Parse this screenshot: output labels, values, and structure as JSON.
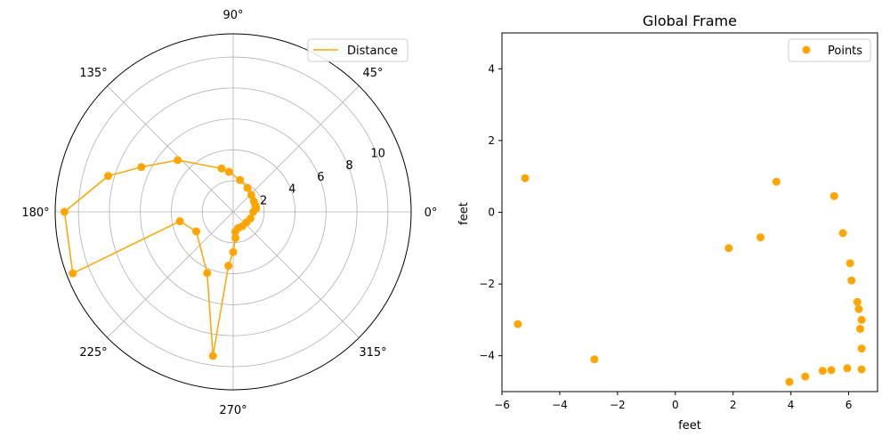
{
  "chart_data": [
    {
      "type": "line",
      "projection": "polar",
      "title": "",
      "angle_tick_labels": [
        "0°",
        "45°",
        "90°",
        "135°",
        "180°",
        "225°",
        "270°",
        "315°"
      ],
      "angle_ticks_deg": [
        0,
        45,
        90,
        135,
        180,
        225,
        270,
        315
      ],
      "radial_tick_labels": [
        "2",
        "4",
        "6",
        "8",
        "10"
      ],
      "radial_ticks": [
        2,
        4,
        6,
        8,
        10
      ],
      "rlim": [
        0,
        11.5
      ],
      "grid": true,
      "legend": {
        "position": "top-right",
        "entries": [
          "Distance"
        ]
      },
      "series": [
        {
          "name": "Distance",
          "color": "#FFA500",
          "marker": "circle",
          "points": [
            {
              "theta": 8,
              "r": 1.5
            },
            {
              "theta": 15,
              "r": 1.5
            },
            {
              "theta": 27,
              "r": 1.5
            },
            {
              "theta": 43,
              "r": 1.6
            },
            {
              "theta": 59,
              "r": 1.8
            },
            {
              "theta": 78,
              "r": 2.1
            },
            {
              "theta": 96,
              "r": 2.6
            },
            {
              "theta": 105,
              "r": 2.9
            },
            {
              "theta": 137,
              "r": 4.9
            },
            {
              "theta": 154,
              "r": 6.6
            },
            {
              "theta": 164,
              "r": 8.4
            },
            {
              "theta": 180,
              "r": 10.9
            },
            {
              "theta": 201,
              "r": 11.1
            },
            {
              "theta": 190,
              "r": 3.5
            },
            {
              "theta": 208,
              "r": 2.7
            },
            {
              "theta": 247,
              "r": 4.3
            },
            {
              "theta": 262,
              "r": 9.4
            },
            {
              "theta": 265,
              "r": 3.5
            },
            {
              "theta": 270,
              "r": 2.6
            },
            {
              "theta": 275,
              "r": 1.7
            },
            {
              "theta": 276,
              "r": 1.3
            },
            {
              "theta": 287,
              "r": 1.1
            },
            {
              "theta": 303,
              "r": 1.1
            },
            {
              "theta": 322,
              "r": 1.1
            },
            {
              "theta": 339,
              "r": 1.2
            },
            {
              "theta": 0,
              "r": 1.3
            },
            {
              "theta": 16,
              "r": 1.5
            }
          ]
        }
      ]
    },
    {
      "type": "scatter",
      "title": "Global Frame",
      "xlabel": "feet",
      "ylabel": "feet",
      "xlim": [
        -6,
        7
      ],
      "ylim": [
        -5,
        5
      ],
      "x_ticks": [
        -6,
        -4,
        -2,
        0,
        2,
        4,
        6
      ],
      "y_ticks": [
        -4,
        -2,
        0,
        2,
        4
      ],
      "x_tick_labels": [
        "−6",
        "−4",
        "−2",
        "0",
        "2",
        "4",
        "6"
      ],
      "y_tick_labels": [
        "−4",
        "−2",
        "0",
        "2",
        "4"
      ],
      "grid": false,
      "legend": {
        "position": "top-right",
        "entries": [
          "Points"
        ]
      },
      "series": [
        {
          "name": "Points",
          "color": "#FFA500",
          "marker": "circle",
          "x": [
            -5.2,
            3.5,
            5.5,
            5.8,
            2.95,
            1.85,
            6.05,
            6.1,
            6.3,
            6.35,
            6.45,
            6.4,
            6.45,
            6.45,
            5.95,
            5.4,
            5.1,
            4.5,
            3.95,
            -2.8,
            -5.45
          ],
          "y": [
            0.95,
            0.85,
            0.45,
            -0.58,
            -0.7,
            -1.0,
            -1.42,
            -1.9,
            -2.5,
            -2.7,
            -3.0,
            -3.25,
            -3.8,
            -4.38,
            -4.35,
            -4.4,
            -4.42,
            -4.58,
            -4.73,
            -4.1,
            -3.12
          ]
        }
      ]
    }
  ]
}
